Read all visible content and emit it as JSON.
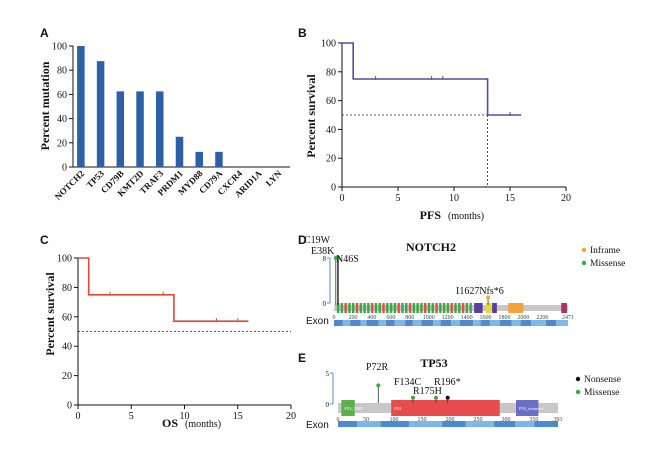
{
  "panels": {
    "A": "A",
    "B": "B",
    "C": "C",
    "D": "D",
    "E": "E"
  },
  "chart_data": [
    {
      "id": "A",
      "type": "bar",
      "ylabel": "Percent mutation",
      "ylim": [
        0,
        100
      ],
      "yticks": [
        "0",
        "20",
        "40",
        "60",
        "80",
        "100"
      ],
      "color": "#2f5fa7",
      "categories": [
        "NOTCH2",
        "TP53",
        "CD79B",
        "KMT2D",
        "TRAF3",
        "PRDM1",
        "MYD88",
        "CD79A",
        "CXCR4",
        "ARID1A",
        "LYN"
      ],
      "values": [
        100,
        87.5,
        62.5,
        62.5,
        62.5,
        25,
        12.5,
        12.5,
        0,
        0,
        0
      ]
    },
    {
      "id": "B",
      "type": "line",
      "xlabel": "PFS",
      "xlabel_units": "(months)",
      "ylabel": "Percent survival",
      "xlim": [
        0,
        20
      ],
      "ylim": [
        0,
        100
      ],
      "xticks": [
        "0",
        "5",
        "10",
        "15",
        "20"
      ],
      "yticks": [
        "0",
        "20",
        "40",
        "60",
        "80",
        "100"
      ],
      "color": "#5b4a9a",
      "steps": [
        [
          0,
          100
        ],
        [
          1,
          100
        ],
        [
          1,
          75
        ],
        [
          13,
          75
        ],
        [
          13,
          50
        ],
        [
          16,
          50
        ]
      ],
      "censored": [
        [
          3,
          75
        ],
        [
          8,
          75
        ],
        [
          9,
          75
        ],
        [
          15,
          50
        ]
      ],
      "median_line": {
        "y": 50,
        "x": 13
      }
    },
    {
      "id": "C",
      "type": "line",
      "xlabel": "OS",
      "xlabel_units": "(months)",
      "ylabel": "Percent survival",
      "xlim": [
        0,
        20
      ],
      "ylim": [
        0,
        100
      ],
      "xticks": [
        "0",
        "5",
        "10",
        "15",
        "20"
      ],
      "yticks": [
        "0",
        "20",
        "40",
        "60",
        "80",
        "100"
      ],
      "color": "#e0483a",
      "steps": [
        [
          0,
          100
        ],
        [
          1,
          100
        ],
        [
          1,
          75
        ],
        [
          9,
          75
        ],
        [
          9,
          57
        ],
        [
          16,
          57
        ]
      ],
      "censored": [
        [
          3,
          75
        ],
        [
          8,
          75
        ],
        [
          13,
          57
        ],
        [
          15,
          57
        ]
      ],
      "reference_line": {
        "y": 50
      }
    },
    {
      "id": "D",
      "type": "lollipop",
      "title": "NOTCH2",
      "protein_length": 2471,
      "y_max": 8,
      "y_ticks": [
        "0",
        "8"
      ],
      "axis_ticks": [
        "0",
        "200",
        "400",
        "600",
        "800",
        "1000",
        "1200",
        "1400",
        "1600",
        "1800",
        "2000",
        "2200",
        "2471"
      ],
      "exon_label": "Exon",
      "mutations": [
        {
          "label": "C19W",
          "position": 19,
          "count": 8,
          "type": "Missense"
        },
        {
          "label": "E38K",
          "position": 38,
          "count": 8,
          "type": "Missense"
        },
        {
          "label": "N46S",
          "position": 46,
          "count": 8,
          "type": "Missense"
        },
        {
          "label": "I1627Nfs*6",
          "position": 1627,
          "count": 1,
          "type": "Inframe"
        }
      ],
      "legend": [
        {
          "label": "Inframe",
          "color": "#f2a33a"
        },
        {
          "label": "Missense",
          "color": "#39a845"
        }
      ]
    },
    {
      "id": "E",
      "type": "lollipop",
      "title": "TP53",
      "protein_length": 393,
      "y_max": 5,
      "y_ticks": [
        "0",
        "5"
      ],
      "axis_ticks": [
        "0",
        "50",
        "100",
        "150",
        "200",
        "250",
        "300",
        "350",
        "393"
      ],
      "exon_label": "Exon",
      "domains": [
        {
          "name": "P53_TAD",
          "start": 6,
          "end": 30,
          "color": "#5db04b"
        },
        {
          "name": "P53",
          "start": 95,
          "end": 289,
          "color": "#e84b4b"
        },
        {
          "name": "P53_tetramer",
          "start": 318,
          "end": 358,
          "color": "#6a6ec4"
        }
      ],
      "mutations": [
        {
          "label": "P72R",
          "position": 72,
          "count": 3,
          "type": "Missense"
        },
        {
          "label": "F134C",
          "position": 134,
          "count": 1,
          "type": "Missense"
        },
        {
          "label": "R175H",
          "position": 175,
          "count": 1,
          "type": "Missense"
        },
        {
          "label": "R196*",
          "position": 196,
          "count": 1,
          "type": "Nonsense"
        }
      ],
      "legend": [
        {
          "label": "Nonsense",
          "color": "#111111"
        },
        {
          "label": "Missense",
          "color": "#39a845"
        }
      ]
    }
  ]
}
